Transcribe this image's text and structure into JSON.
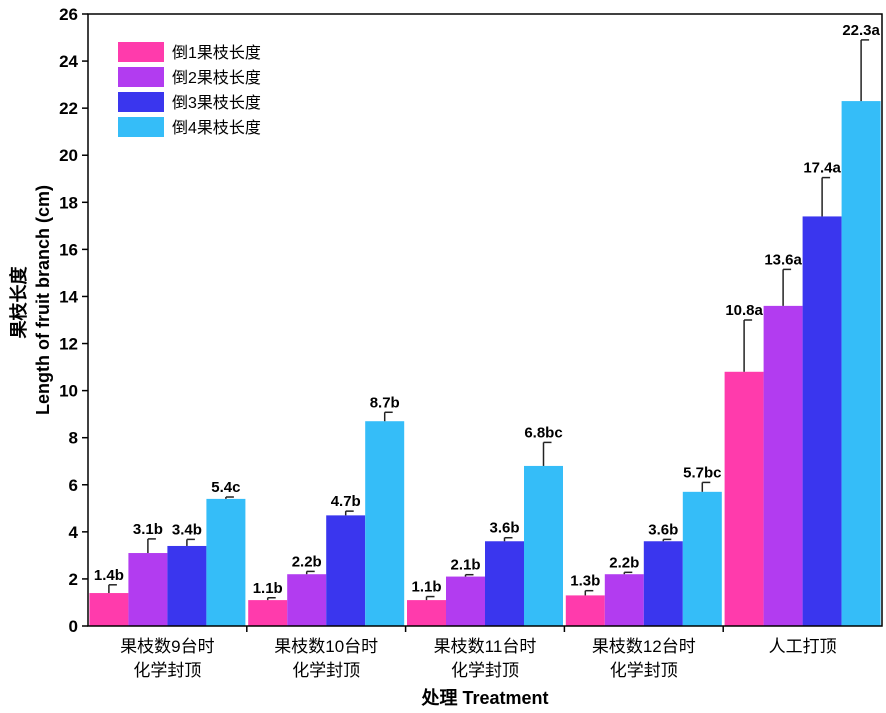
{
  "chart_data": {
    "type": "bar",
    "xlabel": "处理 Treatment",
    "ylabel_cn": "果枝长度",
    "ylabel": "Length of fruit branch (cm)",
    "ylim": [
      0,
      26
    ],
    "yticks": [
      0,
      2,
      4,
      6,
      8,
      10,
      12,
      14,
      16,
      18,
      20,
      22,
      24,
      26
    ],
    "grid": false,
    "legend_position": "top-left",
    "categories": [
      [
        "果枝数9台时",
        "化学封顶"
      ],
      [
        "果枝数10台时",
        "化学封顶"
      ],
      [
        "果枝数11台时",
        "化学封顶"
      ],
      [
        "果枝数12台时",
        "化学封顶"
      ],
      [
        "人工打顶"
      ]
    ],
    "series": [
      {
        "name": "倒1果枝长度",
        "color": "#ff3bac",
        "values": [
          1.4,
          1.1,
          1.1,
          1.3,
          10.8
        ],
        "errors": [
          0.35,
          0.1,
          0.15,
          0.2,
          2.2
        ],
        "labels": [
          "1.4b",
          "1.1b",
          "1.1b",
          "1.3b",
          "10.8a"
        ]
      },
      {
        "name": "倒2果枝长度",
        "color": "#b23cf0",
        "values": [
          3.1,
          2.2,
          2.1,
          2.2,
          13.6
        ],
        "errors": [
          0.6,
          0.12,
          0.08,
          0.08,
          1.55
        ],
        "labels": [
          "3.1b",
          "2.2b",
          "2.1b",
          "2.2b",
          "13.6a"
        ]
      },
      {
        "name": "倒3果枝长度",
        "color": "#3a36ee",
        "values": [
          3.4,
          4.7,
          3.6,
          3.6,
          17.4
        ],
        "errors": [
          0.28,
          0.18,
          0.15,
          0.08,
          1.65
        ],
        "labels": [
          "3.4b",
          "4.7b",
          "3.6b",
          "3.6b",
          "17.4a"
        ]
      },
      {
        "name": "倒4果枝长度",
        "color": "#35bdf8",
        "values": [
          5.4,
          8.7,
          6.8,
          5.7,
          22.3
        ],
        "errors": [
          0.08,
          0.38,
          1.0,
          0.4,
          2.6
        ],
        "labels": [
          "5.4c",
          "8.7b",
          "6.8bc",
          "5.7bc",
          "22.3a"
        ]
      }
    ]
  }
}
